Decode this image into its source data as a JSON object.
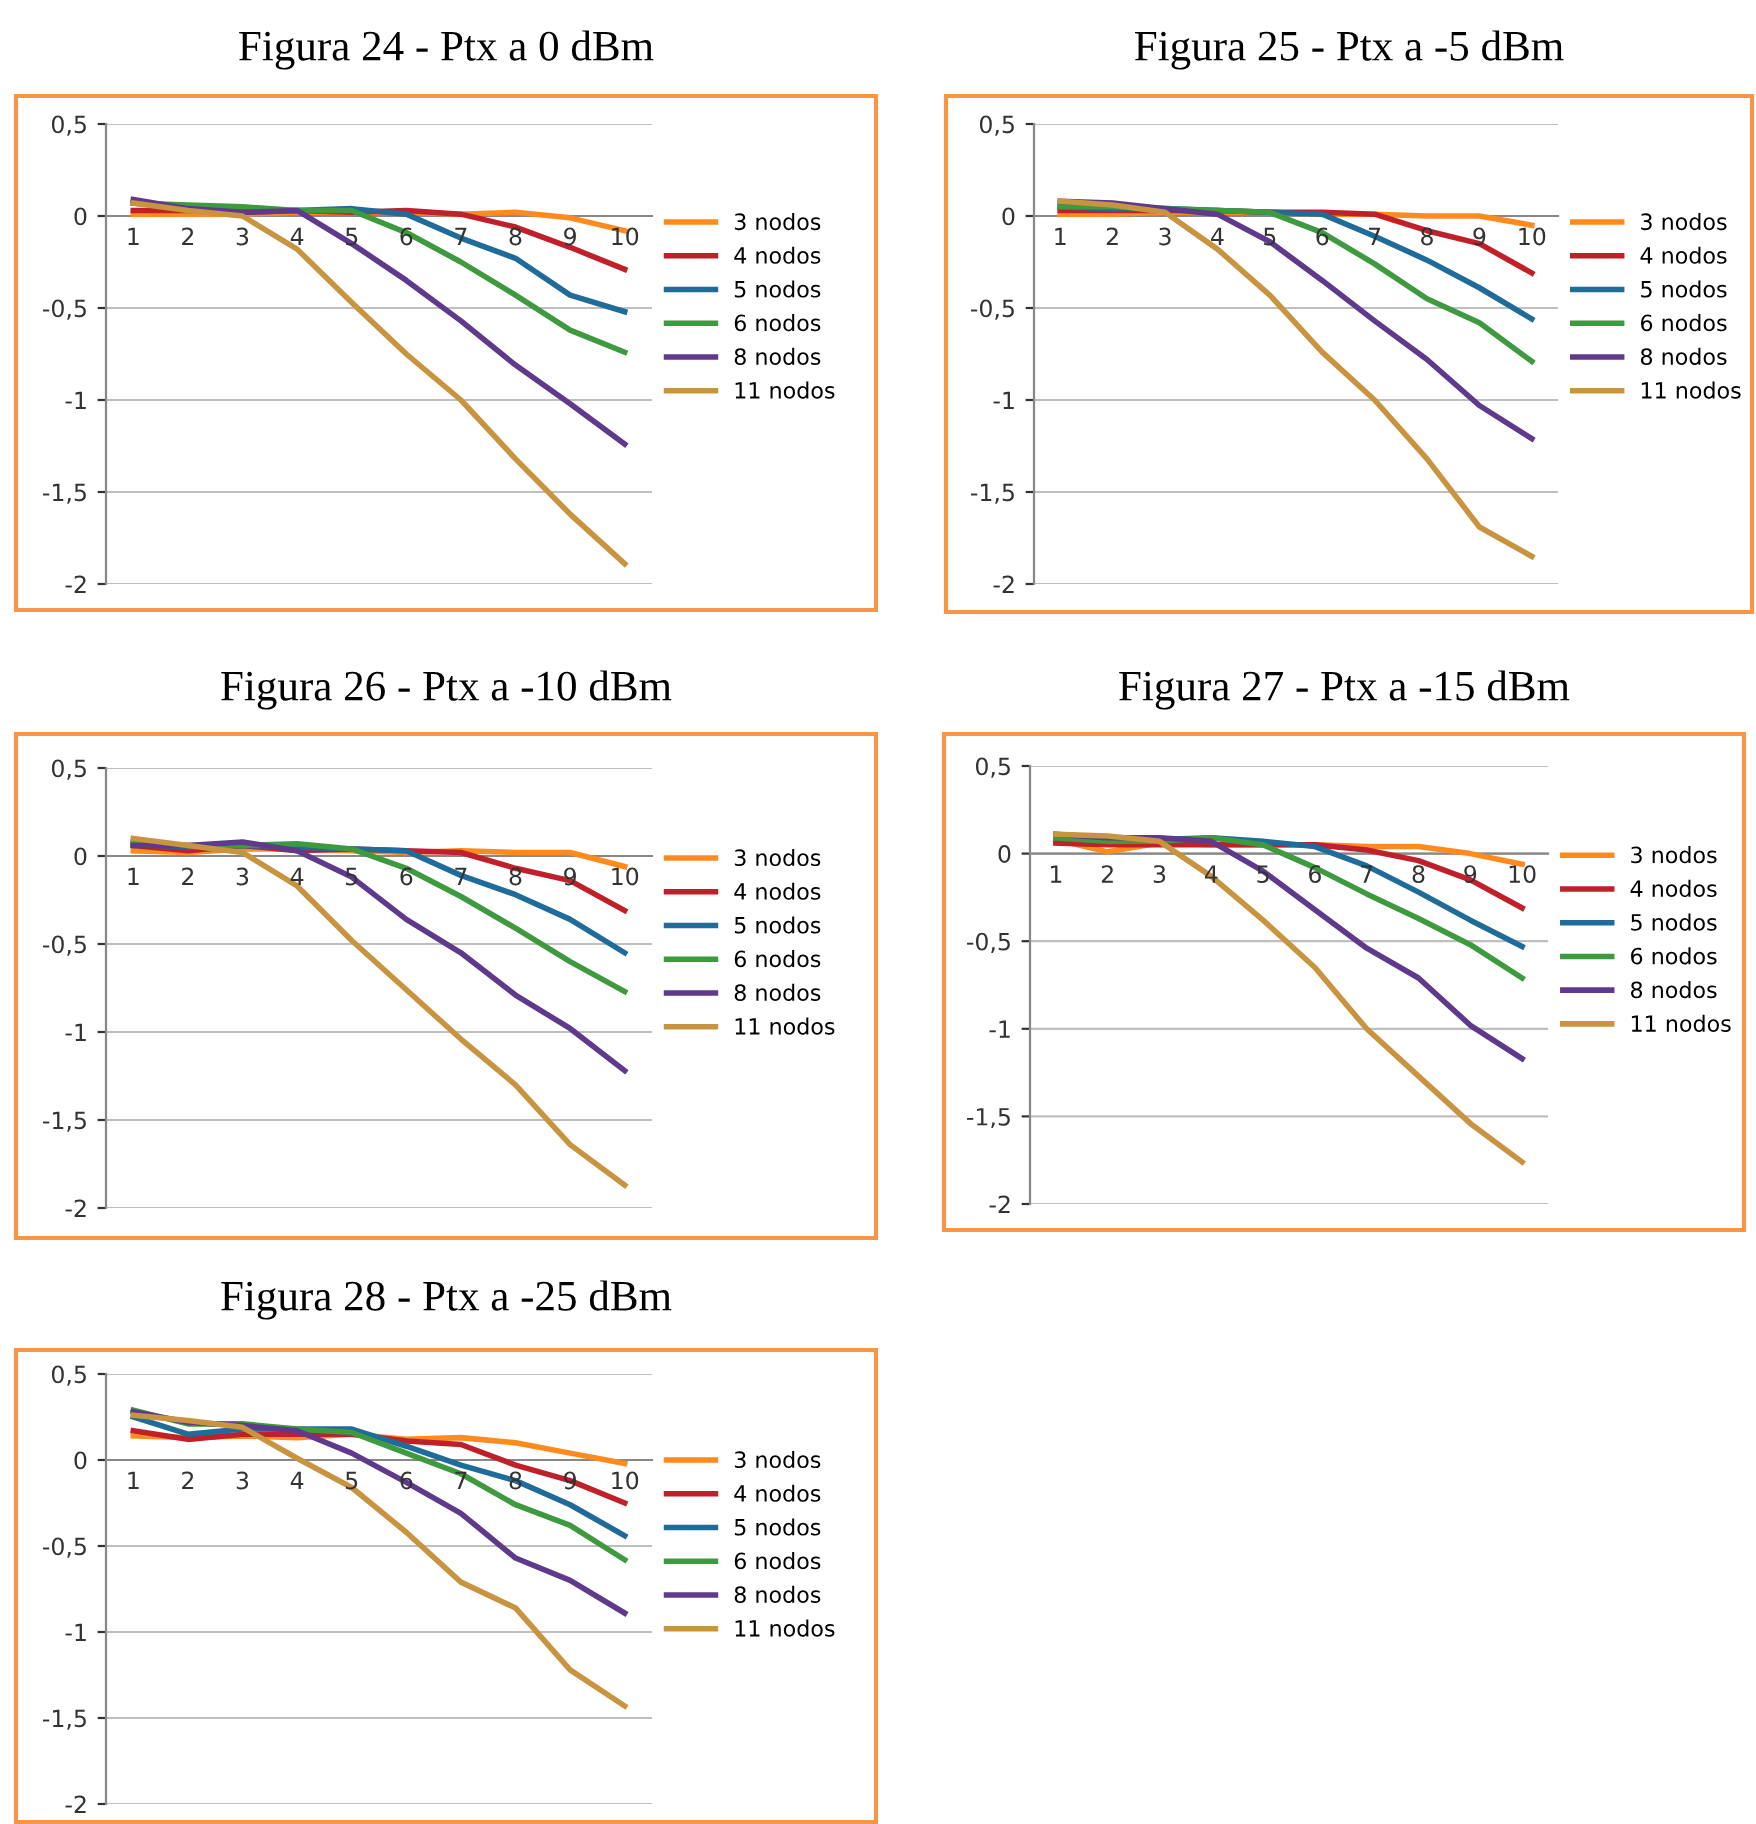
{
  "chart_data": [
    {
      "type": "line",
      "title": "Figura 24 - Ptx a 0 dBm",
      "categories": [
        "1",
        "2",
        "3",
        "4",
        "5",
        "6",
        "7",
        "8",
        "9",
        "10"
      ],
      "ylim": [
        -2,
        0.5
      ],
      "yticks": [
        {
          "value": -2,
          "label": "-2"
        },
        {
          "value": -1.5,
          "label": "-1,5"
        },
        {
          "value": -1,
          "label": "-1"
        },
        {
          "value": -0.5,
          "label": "-0,5"
        },
        {
          "value": 0,
          "label": "0"
        },
        {
          "value": 0.5,
          "label": "0,5"
        }
      ],
      "grid": "y",
      "legend": "right",
      "marker": "none",
      "series": [
        {
          "name": "3 nodos",
          "color": "#ff8a1e",
          "values": [
            0.01,
            0.01,
            0.01,
            0.02,
            0.02,
            0.02,
            0.01,
            0.02,
            -0.01,
            -0.08
          ]
        },
        {
          "name": "4 nodos",
          "color": "#c0202a",
          "values": [
            0.03,
            0.03,
            0.02,
            0.03,
            0.02,
            0.03,
            0.01,
            -0.06,
            -0.17,
            -0.29
          ]
        },
        {
          "name": "5 nodos",
          "color": "#1f6b9a",
          "values": [
            0.07,
            0.05,
            0.03,
            0.03,
            0.04,
            0.01,
            -0.12,
            -0.23,
            -0.43,
            -0.52
          ]
        },
        {
          "name": "6 nodos",
          "color": "#3e9a3e",
          "values": [
            0.07,
            0.06,
            0.05,
            0.03,
            0.03,
            -0.09,
            -0.25,
            -0.43,
            -0.62,
            -0.74
          ]
        },
        {
          "name": "8 nodos",
          "color": "#5f3a8c",
          "values": [
            0.09,
            0.04,
            0.02,
            0.03,
            -0.15,
            -0.35,
            -0.57,
            -0.81,
            -1.02,
            -1.24
          ]
        },
        {
          "name": "11 nodos",
          "color": "#c8943f",
          "values": [
            0.07,
            0.03,
            0.0,
            -0.18,
            -0.47,
            -0.75,
            -1.0,
            -1.32,
            -1.62,
            -1.89
          ]
        }
      ]
    },
    {
      "type": "line",
      "title": "Figura 25 - Ptx a -5 dBm",
      "categories": [
        "1",
        "2",
        "3",
        "4",
        "5",
        "6",
        "7",
        "8",
        "9",
        "10"
      ],
      "ylim": [
        -2,
        0.5
      ],
      "yticks": [
        {
          "value": -2,
          "label": "-2"
        },
        {
          "value": -1.5,
          "label": "-1,5"
        },
        {
          "value": -1,
          "label": "-1"
        },
        {
          "value": -0.5,
          "label": "-0,5"
        },
        {
          "value": 0,
          "label": "0"
        },
        {
          "value": 0.5,
          "label": "0,5"
        }
      ],
      "grid": "y",
      "legend": "right",
      "marker": "none",
      "series": [
        {
          "name": "3 nodos",
          "color": "#ff8a1e",
          "values": [
            0.01,
            0.01,
            0.02,
            0.02,
            0.02,
            0.01,
            0.01,
            0.0,
            0.0,
            -0.05
          ]
        },
        {
          "name": "4 nodos",
          "color": "#c0202a",
          "values": [
            0.03,
            0.03,
            0.03,
            0.03,
            0.02,
            0.02,
            0.01,
            -0.08,
            -0.15,
            -0.31
          ]
        },
        {
          "name": "5 nodos",
          "color": "#1f6b9a",
          "values": [
            0.05,
            0.04,
            0.04,
            0.03,
            0.02,
            0.01,
            -0.11,
            -0.24,
            -0.39,
            -0.56
          ]
        },
        {
          "name": "6 nodos",
          "color": "#3e9a3e",
          "values": [
            0.05,
            0.05,
            0.04,
            0.03,
            0.02,
            -0.09,
            -0.26,
            -0.45,
            -0.58,
            -0.79
          ]
        },
        {
          "name": "8 nodos",
          "color": "#5f3a8c",
          "values": [
            0.08,
            0.07,
            0.04,
            0.01,
            -0.14,
            -0.35,
            -0.57,
            -0.78,
            -1.03,
            -1.21
          ]
        },
        {
          "name": "11 nodos",
          "color": "#c8943f",
          "values": [
            0.08,
            0.06,
            0.02,
            -0.18,
            -0.43,
            -0.74,
            -1.0,
            -1.32,
            -1.69,
            -1.85
          ]
        }
      ]
    },
    {
      "type": "line",
      "title": "Figura 26 - Ptx a -10 dBm",
      "categories": [
        "1",
        "2",
        "3",
        "4",
        "5",
        "6",
        "7",
        "8",
        "9",
        "10"
      ],
      "ylim": [
        -2,
        0.5
      ],
      "yticks": [
        {
          "value": -2,
          "label": "-2"
        },
        {
          "value": -1.5,
          "label": "-1,5"
        },
        {
          "value": -1,
          "label": "-1"
        },
        {
          "value": -0.5,
          "label": "-0,5"
        },
        {
          "value": 0,
          "label": "0"
        },
        {
          "value": 0.5,
          "label": "0,5"
        }
      ],
      "grid": "y",
      "legend": "right",
      "marker": "none",
      "series": [
        {
          "name": "3 nodos",
          "color": "#ff8a1e",
          "values": [
            0.03,
            0.02,
            0.04,
            0.04,
            0.03,
            0.02,
            0.03,
            0.02,
            0.02,
            -0.06
          ]
        },
        {
          "name": "4 nodos",
          "color": "#c0202a",
          "values": [
            0.06,
            0.03,
            0.06,
            0.03,
            0.04,
            0.03,
            0.02,
            -0.07,
            -0.14,
            -0.31
          ]
        },
        {
          "name": "5 nodos",
          "color": "#1f6b9a",
          "values": [
            0.07,
            0.05,
            0.06,
            0.05,
            0.04,
            0.03,
            -0.11,
            -0.22,
            -0.36,
            -0.55
          ]
        },
        {
          "name": "6 nodos",
          "color": "#3e9a3e",
          "values": [
            0.08,
            0.06,
            0.06,
            0.07,
            0.04,
            -0.07,
            -0.23,
            -0.41,
            -0.6,
            -0.77
          ]
        },
        {
          "name": "8 nodos",
          "color": "#5f3a8c",
          "values": [
            0.06,
            0.06,
            0.08,
            0.03,
            -0.12,
            -0.36,
            -0.55,
            -0.79,
            -0.98,
            -1.22
          ]
        },
        {
          "name": "11 nodos",
          "color": "#c8943f",
          "values": [
            0.1,
            0.06,
            0.02,
            -0.17,
            -0.48,
            -0.76,
            -1.04,
            -1.3,
            -1.64,
            -1.87
          ]
        }
      ]
    },
    {
      "type": "line",
      "title": "Figura 27 - Ptx a -15 dBm",
      "categories": [
        "1",
        "2",
        "3",
        "4",
        "5",
        "6",
        "7",
        "8",
        "9",
        "10"
      ],
      "ylim": [
        -2,
        0.5
      ],
      "yticks": [
        {
          "value": -2,
          "label": "-2"
        },
        {
          "value": -1.5,
          "label": "-1,5"
        },
        {
          "value": -1,
          "label": "-1"
        },
        {
          "value": -0.5,
          "label": "-0,5"
        },
        {
          "value": 0,
          "label": "0"
        },
        {
          "value": 0.5,
          "label": "0,5"
        }
      ],
      "grid": "y",
      "legend": "right",
      "marker": "none",
      "series": [
        {
          "name": "3 nodos",
          "color": "#ff8a1e",
          "values": [
            0.08,
            0.01,
            0.06,
            0.05,
            0.05,
            0.05,
            0.04,
            0.04,
            0.0,
            -0.06
          ]
        },
        {
          "name": "4 nodos",
          "color": "#c0202a",
          "values": [
            0.06,
            0.05,
            0.05,
            0.05,
            0.05,
            0.05,
            0.02,
            -0.04,
            -0.15,
            -0.31
          ]
        },
        {
          "name": "5 nodos",
          "color": "#1f6b9a",
          "values": [
            0.09,
            0.08,
            0.08,
            0.09,
            0.07,
            0.04,
            -0.07,
            -0.22,
            -0.38,
            -0.53
          ]
        },
        {
          "name": "6 nodos",
          "color": "#3e9a3e",
          "values": [
            0.09,
            0.07,
            0.07,
            0.09,
            0.05,
            -0.08,
            -0.23,
            -0.37,
            -0.52,
            -0.71
          ]
        },
        {
          "name": "8 nodos",
          "color": "#5f3a8c",
          "values": [
            0.11,
            0.09,
            0.09,
            0.07,
            -0.1,
            -0.32,
            -0.54,
            -0.71,
            -0.98,
            -1.17
          ]
        },
        {
          "name": "11 nodos",
          "color": "#c8943f",
          "values": [
            0.11,
            0.1,
            0.07,
            -0.13,
            -0.38,
            -0.65,
            -1.0,
            -1.27,
            -1.54,
            -1.76
          ]
        }
      ]
    },
    {
      "type": "line",
      "title": "Figura 28 - Ptx a -25 dBm",
      "categories": [
        "1",
        "2",
        "3",
        "4",
        "5",
        "6",
        "7",
        "8",
        "9",
        "10"
      ],
      "ylim": [
        -2,
        0.5
      ],
      "yticks": [
        {
          "value": -2,
          "label": "-2"
        },
        {
          "value": -1.5,
          "label": "-1,5"
        },
        {
          "value": -1,
          "label": "-1"
        },
        {
          "value": -0.5,
          "label": "-0,5"
        },
        {
          "value": 0,
          "label": "0"
        },
        {
          "value": 0.5,
          "label": "0,5"
        }
      ],
      "grid": "y",
      "legend": "right",
      "marker": "none",
      "series": [
        {
          "name": "3 nodos",
          "color": "#ff8a1e",
          "values": [
            0.14,
            0.13,
            0.14,
            0.13,
            0.15,
            0.12,
            0.13,
            0.1,
            0.04,
            -0.02
          ]
        },
        {
          "name": "4 nodos",
          "color": "#c0202a",
          "values": [
            0.17,
            0.12,
            0.15,
            0.15,
            0.15,
            0.11,
            0.09,
            -0.03,
            -0.12,
            -0.25
          ]
        },
        {
          "name": "5 nodos",
          "color": "#1f6b9a",
          "values": [
            0.25,
            0.15,
            0.18,
            0.18,
            0.18,
            0.08,
            -0.03,
            -0.12,
            -0.26,
            -0.44
          ]
        },
        {
          "name": "6 nodos",
          "color": "#3e9a3e",
          "values": [
            0.29,
            0.21,
            0.21,
            0.18,
            0.16,
            0.04,
            -0.08,
            -0.26,
            -0.38,
            -0.58
          ]
        },
        {
          "name": "8 nodos",
          "color": "#5f3a8c",
          "values": [
            0.28,
            0.22,
            0.2,
            0.17,
            0.04,
            -0.13,
            -0.31,
            -0.57,
            -0.7,
            -0.89
          ]
        },
        {
          "name": "11 nodos",
          "color": "#c8943f",
          "values": [
            0.26,
            0.23,
            0.19,
            0.01,
            -0.16,
            -0.42,
            -0.71,
            -0.86,
            -1.22,
            -1.43
          ]
        }
      ]
    }
  ]
}
